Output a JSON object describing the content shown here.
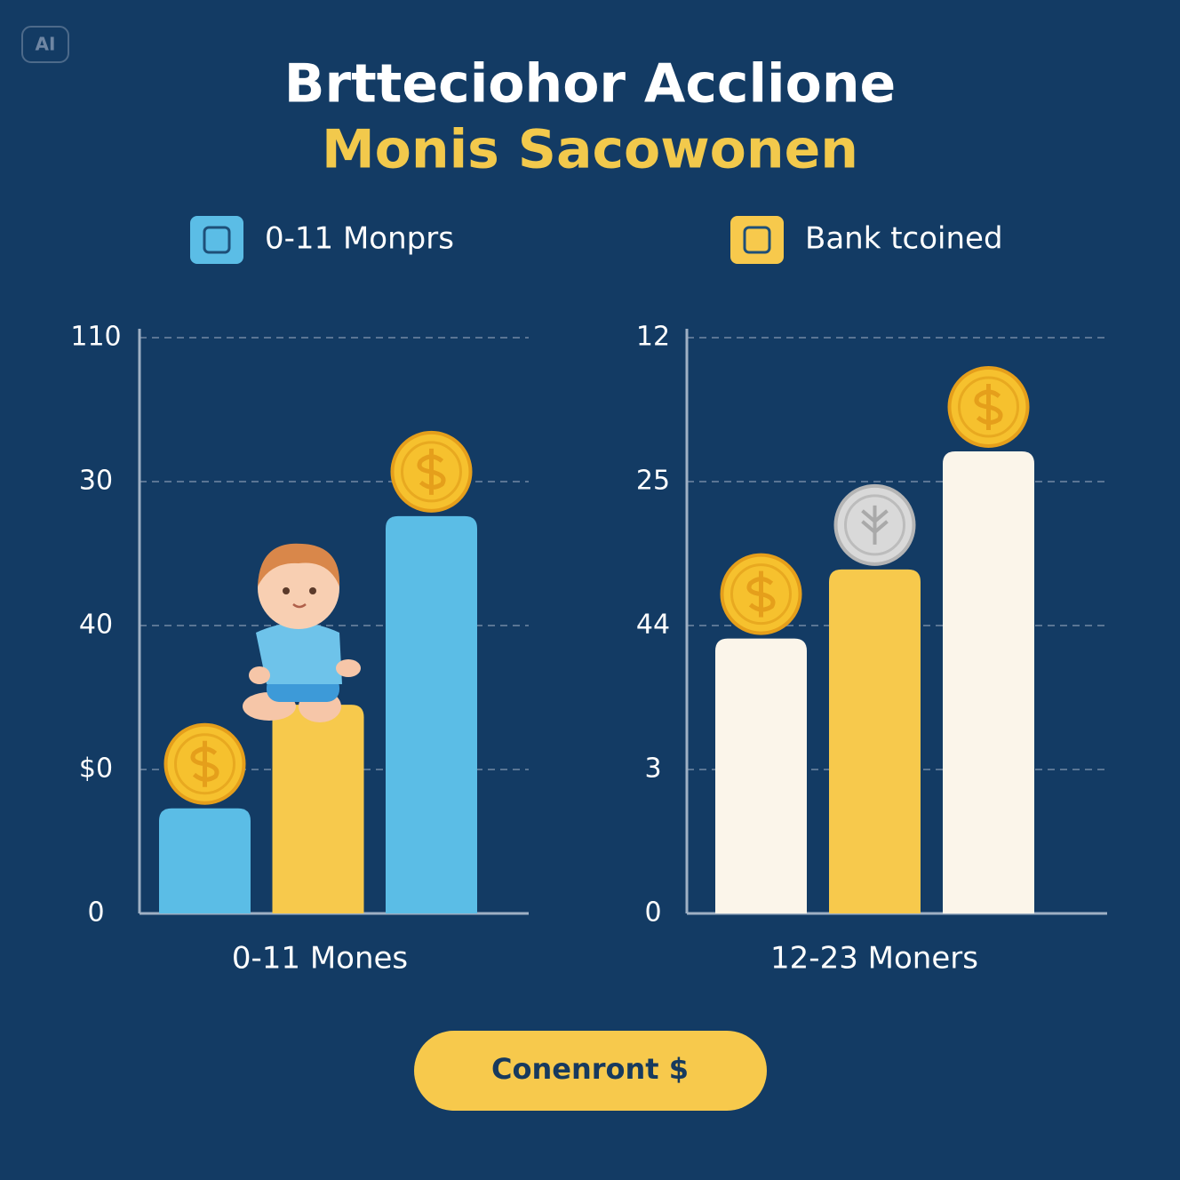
{
  "header": {
    "badge": "AI",
    "title": "Brtteciohor Acclione",
    "subtitle": "Monis Sacowonen"
  },
  "legend": [
    {
      "label": "0-11 Monprs",
      "color": "#5bbde6"
    },
    {
      "label": "Bank tcoined",
      "color": "#f7c94c"
    }
  ],
  "chart_data": [
    {
      "type": "bar",
      "xlabel": "0-11 Mones",
      "values": [
        0.73,
        1.45,
        2.76
      ],
      "colors": [
        "#5bbde6",
        "#f7c94c",
        "#5bbde6"
      ],
      "ylim": [
        0,
        4
      ],
      "yticks": [
        {
          "value": 0,
          "label": "0"
        },
        {
          "value": 1,
          "label": "$0"
        },
        {
          "value": 2,
          "label": "40"
        },
        {
          "value": 3,
          "label": "30"
        },
        {
          "value": 4,
          "label": "110"
        }
      ],
      "grid": true
    },
    {
      "type": "bar",
      "xlabel": "12-23 Moners",
      "values": [
        1.91,
        2.39,
        3.21
      ],
      "colors": [
        "#fbf5ea",
        "#f7c94c",
        "#fbf5ea"
      ],
      "ylim": [
        0,
        4
      ],
      "yticks": [
        {
          "value": 0,
          "label": "0"
        },
        {
          "value": 1,
          "label": "3"
        },
        {
          "value": 2,
          "label": "44"
        },
        {
          "value": 3,
          "label": "25"
        },
        {
          "value": 4,
          "label": "12"
        }
      ],
      "grid": true
    }
  ],
  "button": {
    "label": "Conenront $"
  }
}
